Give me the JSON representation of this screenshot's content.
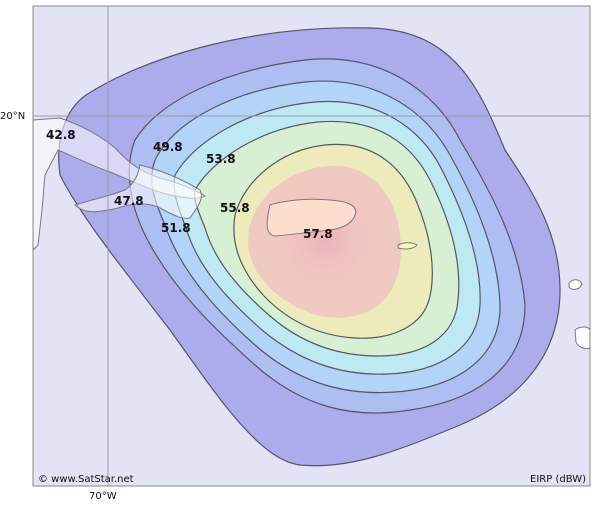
{
  "map": {
    "latitude_label": "20°N",
    "longitude_label": "70°W",
    "credit": "© www.SatStar.net",
    "units_label": "EIRP (dBW)",
    "colors": {
      "ocean": "#e3e3f6",
      "land": "#ffffff",
      "contour_line": "#555566",
      "grid_line": "#9a9aaa"
    }
  },
  "contours": [
    {
      "value": 42.8,
      "label": "42.8",
      "color": "#a7a7ec"
    },
    {
      "value": 47.8,
      "label": "47.8",
      "color": "#aebef2"
    },
    {
      "value": 49.8,
      "label": "49.8",
      "color": "#b2d6f6"
    },
    {
      "value": 51.8,
      "label": "51.8",
      "color": "#bfeaf2"
    },
    {
      "value": 53.8,
      "label": "53.8",
      "color": "#d9f0d0"
    },
    {
      "value": 55.8,
      "label": "55.8",
      "color": "#efeab8"
    },
    {
      "value": 57.8,
      "label": "57.8",
      "color": "#f0c6c0"
    }
  ]
}
